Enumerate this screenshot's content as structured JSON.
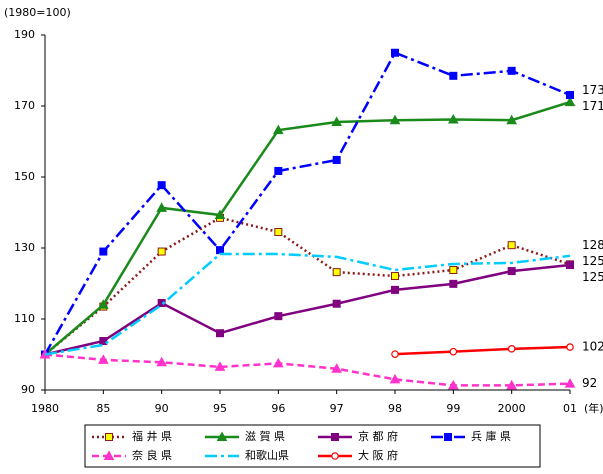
{
  "chart_data": {
    "type": "line",
    "y_unit_label": "(1980=100)",
    "x_unit_label": "(年)",
    "categories": [
      "1980",
      "85",
      "90",
      "95",
      "96",
      "97",
      "98",
      "99",
      "2000",
      "01"
    ],
    "ylim": [
      90,
      190
    ],
    "yticks": [
      90,
      110,
      130,
      150,
      170,
      190
    ],
    "grid": false,
    "legend": "bottom",
    "series": [
      {
        "name": "福 井 県",
        "color": "#8b1a1a",
        "dash": "dotted",
        "marker": "square",
        "marker_fill": "#ffff00",
        "values": [
          100,
          113.5,
          129,
          138.5,
          134.5,
          123.2,
          122.1,
          123.8,
          130.8,
          125.4
        ],
        "end_label": "125"
      },
      {
        "name": "滋 賀 県",
        "color": "#1a8a1a",
        "dash": "solid",
        "marker": "triangle",
        "marker_fill": "#1a8a1a",
        "values": [
          100,
          114,
          141.3,
          139.3,
          163.2,
          165.5,
          166,
          166.2,
          166,
          171.1
        ],
        "end_label": "171"
      },
      {
        "name": "京 都 府",
        "color": "#800080",
        "dash": "solid",
        "marker": "square",
        "marker_fill": "#800080",
        "values": [
          100,
          103.8,
          114.5,
          106,
          110.8,
          114.3,
          118.2,
          119.9,
          123.5,
          125.2
        ],
        "end_label": "125"
      },
      {
        "name": "兵 庫 県",
        "color": "#0000ff",
        "dash": "dashdot",
        "marker": "square",
        "marker_fill": "#0000ff",
        "values": [
          100,
          129,
          147.7,
          129.4,
          151.7,
          154.8,
          185,
          178.5,
          179.9,
          173.1
        ],
        "end_label": "173"
      },
      {
        "name": "奈 良 県",
        "color": "#ff33cc",
        "dash": "dashed",
        "marker": "triangle",
        "marker_fill": "#ff33cc",
        "values": [
          100,
          98.5,
          97.8,
          96.5,
          97.5,
          96,
          93,
          91.3,
          91.3,
          91.8
        ],
        "end_label": "92"
      },
      {
        "name": "和歌山県",
        "color": "#00ccff",
        "dash": "dashdot",
        "marker": "none",
        "marker_fill": "#00ccff",
        "values": [
          100,
          102.7,
          114,
          128.3,
          128.3,
          127.5,
          123.8,
          125.5,
          125.8,
          127.8
        ],
        "end_label": "128"
      },
      {
        "name": "大 阪 府",
        "color": "#ff0000",
        "dash": "solid",
        "marker": "circle",
        "marker_fill": "#ffffff",
        "values": [
          null,
          null,
          null,
          null,
          null,
          null,
          100.1,
          100.8,
          101.6,
          102.1
        ],
        "end_label": "102"
      }
    ]
  }
}
